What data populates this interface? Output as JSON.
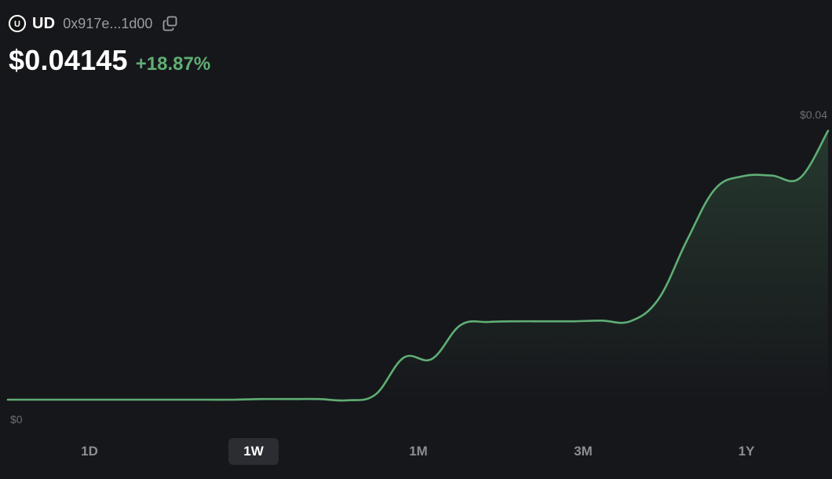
{
  "token": {
    "logo_letter": "U",
    "symbol": "UD",
    "address": "0x917e...1d00"
  },
  "price": {
    "value": "$0.04145",
    "change": "+18.87%"
  },
  "colors": {
    "background": "#16171b",
    "line": "#5fae74",
    "positive": "#5fae74",
    "muted": "#6c6e75"
  },
  "icons": {
    "logo": "token-logo-icon",
    "copy": "copy-icon"
  },
  "range": {
    "options": [
      "1D",
      "1W",
      "1M",
      "3M",
      "1Y"
    ],
    "selected": "1W"
  },
  "chart_data": {
    "type": "area",
    "series": [
      {
        "values": [
          0,
          0,
          0,
          0,
          0,
          0,
          0,
          0,
          0,
          0.0001,
          0.0001,
          0.0001,
          -0.0001,
          0.0008,
          0.0065,
          0.0063,
          0.0115,
          0.012,
          0.0121,
          0.0121,
          0.0121,
          0.0122,
          0.0121,
          0.0155,
          0.0245,
          0.0325,
          0.0345,
          0.0346,
          0.0342,
          0.0415
        ]
      }
    ],
    "y_labels": {
      "top": "$0.04",
      "bottom": "$0"
    },
    "ylim": [
      0,
      0.04145
    ],
    "grid": false,
    "legend": "none"
  }
}
